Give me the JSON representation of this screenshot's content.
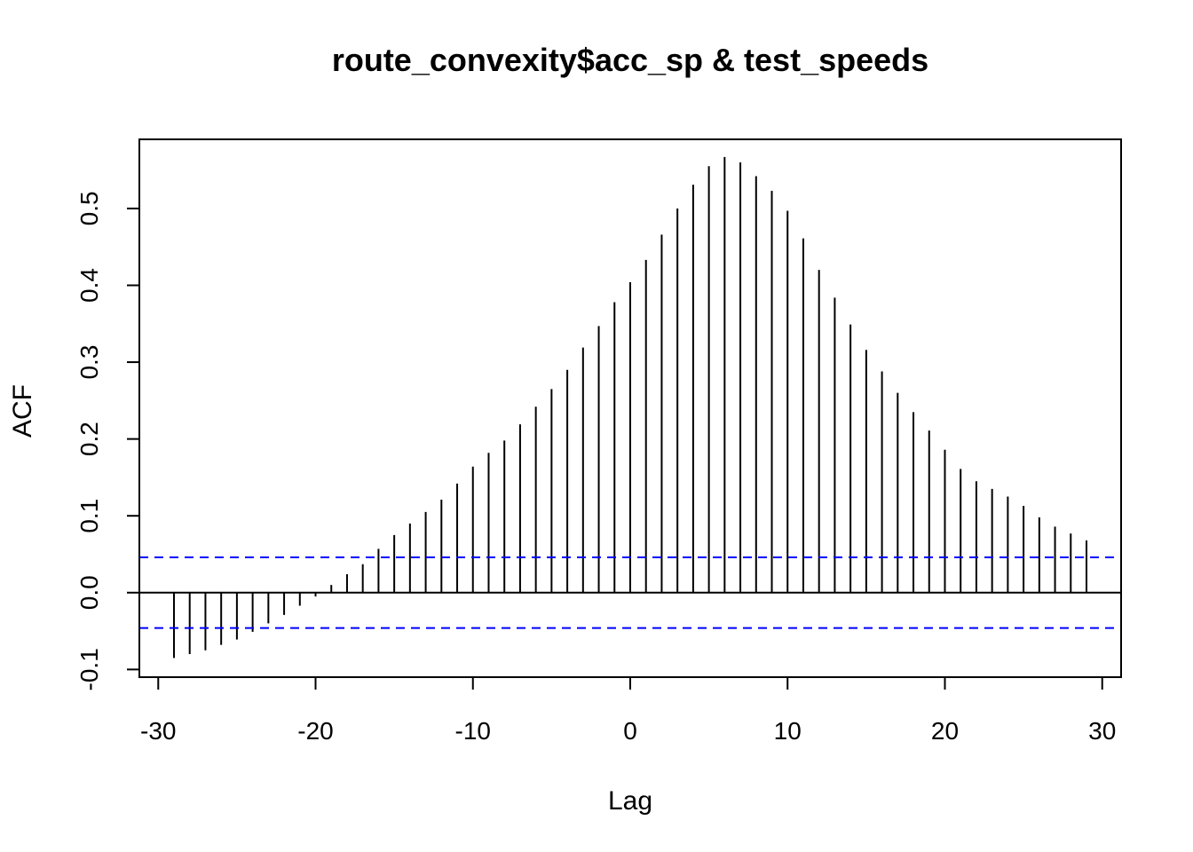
{
  "chart_data": {
    "type": "bar",
    "title": "route_convexity$acc_sp & test_speeds",
    "xlabel": "Lag",
    "ylabel": "ACF",
    "xlim": [
      -31.2,
      31.2
    ],
    "ylim": [
      -0.11,
      0.59
    ],
    "x_ticks": [
      -30,
      -20,
      -10,
      0,
      10,
      20,
      30
    ],
    "x_tick_labels": [
      "-30",
      "-20",
      "-10",
      "0",
      "10",
      "20",
      "30"
    ],
    "y_ticks": [
      -0.1,
      0.0,
      0.1,
      0.2,
      0.3,
      0.4,
      0.5
    ],
    "y_tick_labels": [
      "-0.1",
      "0.0",
      "0.1",
      "0.2",
      "0.3",
      "0.4",
      "0.5"
    ],
    "grid": false,
    "lag": [
      -29,
      -28,
      -27,
      -26,
      -25,
      -24,
      -23,
      -22,
      -21,
      -20,
      -19,
      -18,
      -17,
      -16,
      -15,
      -14,
      -13,
      -12,
      -11,
      -10,
      -9,
      -8,
      -7,
      -6,
      -5,
      -4,
      -3,
      -2,
      -1,
      0,
      1,
      2,
      3,
      4,
      5,
      6,
      7,
      8,
      9,
      10,
      11,
      12,
      13,
      14,
      15,
      16,
      17,
      18,
      19,
      20,
      21,
      22,
      23,
      24,
      25,
      26,
      27,
      28,
      29
    ],
    "acf": [
      -0.085,
      -0.08,
      -0.075,
      -0.068,
      -0.061,
      -0.051,
      -0.04,
      -0.029,
      -0.017,
      -0.005,
      0.01,
      0.024,
      0.037,
      0.057,
      0.075,
      0.09,
      0.105,
      0.121,
      0.142,
      0.164,
      0.182,
      0.198,
      0.219,
      0.242,
      0.265,
      0.29,
      0.319,
      0.347,
      0.378,
      0.404,
      0.433,
      0.466,
      0.5,
      0.531,
      0.555,
      0.567,
      0.56,
      0.542,
      0.523,
      0.497,
      0.461,
      0.42,
      0.384,
      0.349,
      0.316,
      0.288,
      0.26,
      0.235,
      0.211,
      0.186,
      0.161,
      0.145,
      0.135,
      0.125,
      0.113,
      0.098,
      0.086,
      0.077,
      0.068
    ],
    "confidence_bounds": [
      0.046,
      -0.046
    ],
    "colors": {
      "bars": "#000000",
      "confidence": "#0000ff",
      "zero_line": "#000000",
      "frame": "#000000"
    }
  }
}
